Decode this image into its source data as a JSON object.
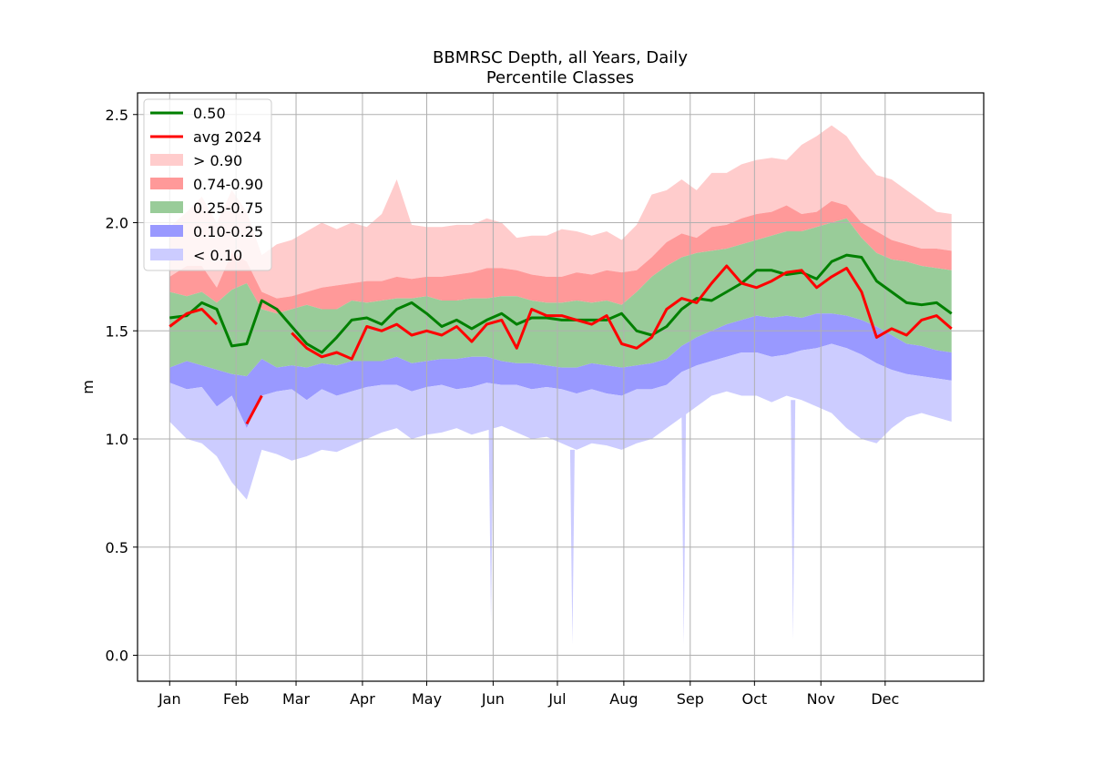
{
  "chart_data": {
    "type": "area",
    "title": "BBMRSC Depth, all Years, Daily",
    "subtitle": "Percentile Classes",
    "xlabel": "",
    "ylabel": "m",
    "ylim": [
      -0.12,
      2.6
    ],
    "yticks": [
      0.0,
      0.5,
      1.0,
      1.5,
      2.0,
      2.5
    ],
    "ytick_labels": [
      "0.0",
      "0.5",
      "1.0",
      "1.5",
      "2.0",
      "2.5"
    ],
    "xlim_day": [
      -15,
      380
    ],
    "xticks": [
      {
        "day": 0,
        "label": "Jan"
      },
      {
        "day": 31,
        "label": "Feb"
      },
      {
        "day": 59,
        "label": "Mar"
      },
      {
        "day": 90,
        "label": "Apr"
      },
      {
        "day": 120,
        "label": "May"
      },
      {
        "day": 151,
        "label": "Jun"
      },
      {
        "day": 181,
        "label": "Jul"
      },
      {
        "day": 212,
        "label": "Aug"
      },
      {
        "day": 243,
        "label": "Sep"
      },
      {
        "day": 273,
        "label": "Oct"
      },
      {
        "day": 304,
        "label": "Nov"
      },
      {
        "day": 334,
        "label": "Dec"
      }
    ],
    "grid": true,
    "legend_position": "upper-left",
    "legend": [
      {
        "label": "0.50",
        "kind": "line",
        "color": "#008000"
      },
      {
        "label": "avg 2024",
        "kind": "line",
        "color": "#ff0000"
      },
      {
        "label": "> 0.90",
        "kind": "patch",
        "color": "#ffcccc"
      },
      {
        "label": "0.74-0.90",
        "kind": "patch",
        "color": "#ff9999"
      },
      {
        "label": "0.25-0.75",
        "kind": "patch",
        "color": "#99cc99"
      },
      {
        "label": "0.10-0.25",
        "kind": "patch",
        "color": "#9999ff"
      },
      {
        "label": "< 0.10",
        "kind": "patch",
        "color": "#ccccff"
      }
    ],
    "band_colors": {
      "gt90": "#ffcccc",
      "p74_90": "#ff9999",
      "p25_75": "#99cc99",
      "p10_25": "#9999ff",
      "lt10": "#ccccff"
    },
    "line_colors": {
      "median": "#008000",
      "avg": "#ff0000"
    },
    "day": [
      0,
      8,
      15,
      22,
      29,
      36,
      43,
      50,
      57,
      64,
      71,
      78,
      85,
      92,
      99,
      106,
      113,
      120,
      127,
      134,
      141,
      148,
      155,
      162,
      169,
      176,
      183,
      190,
      197,
      204,
      211,
      218,
      225,
      232,
      239,
      246,
      253,
      260,
      267,
      274,
      281,
      288,
      295,
      302,
      309,
      316,
      323,
      330,
      337,
      344,
      351,
      358,
      365
    ],
    "series": [
      {
        "name": "max",
        "values": [
          1.98,
          2.05,
          2.12,
          2.0,
          2.15,
          2.05,
          1.85,
          1.9,
          1.92,
          1.96,
          2.0,
          1.97,
          2.0,
          1.98,
          2.04,
          2.2,
          1.99,
          1.98,
          1.98,
          1.99,
          1.99,
          2.02,
          2.0,
          1.93,
          1.94,
          1.94,
          1.97,
          1.96,
          1.94,
          1.96,
          1.92,
          1.99,
          2.13,
          2.15,
          2.2,
          2.15,
          2.23,
          2.23,
          2.27,
          2.29,
          2.3,
          2.29,
          2.36,
          2.4,
          2.45,
          2.4,
          2.3,
          2.22,
          2.2,
          2.15,
          2.1,
          2.05,
          2.04
        ]
      },
      {
        "name": "p90",
        "values": [
          1.75,
          1.8,
          1.8,
          1.7,
          1.86,
          1.82,
          1.68,
          1.65,
          1.66,
          1.68,
          1.7,
          1.71,
          1.72,
          1.73,
          1.73,
          1.75,
          1.74,
          1.75,
          1.75,
          1.76,
          1.77,
          1.79,
          1.79,
          1.78,
          1.76,
          1.75,
          1.75,
          1.77,
          1.76,
          1.78,
          1.77,
          1.78,
          1.84,
          1.91,
          1.95,
          1.93,
          1.98,
          1.99,
          2.02,
          2.04,
          2.05,
          2.08,
          2.04,
          2.05,
          2.1,
          2.08,
          2.0,
          1.96,
          1.92,
          1.9,
          1.88,
          1.88,
          1.87
        ]
      },
      {
        "name": "p75",
        "values": [
          1.68,
          1.66,
          1.68,
          1.63,
          1.69,
          1.72,
          1.6,
          1.58,
          1.6,
          1.62,
          1.6,
          1.6,
          1.64,
          1.63,
          1.64,
          1.65,
          1.65,
          1.66,
          1.64,
          1.64,
          1.65,
          1.65,
          1.66,
          1.66,
          1.64,
          1.63,
          1.63,
          1.64,
          1.63,
          1.64,
          1.62,
          1.68,
          1.75,
          1.8,
          1.84,
          1.86,
          1.87,
          1.88,
          1.9,
          1.92,
          1.94,
          1.96,
          1.96,
          1.98,
          2.0,
          2.02,
          1.93,
          1.86,
          1.83,
          1.82,
          1.8,
          1.79,
          1.78
        ]
      },
      {
        "name": "p25",
        "values": [
          1.33,
          1.36,
          1.34,
          1.32,
          1.3,
          1.29,
          1.37,
          1.33,
          1.34,
          1.33,
          1.35,
          1.34,
          1.36,
          1.36,
          1.36,
          1.38,
          1.35,
          1.36,
          1.37,
          1.37,
          1.38,
          1.38,
          1.36,
          1.35,
          1.35,
          1.34,
          1.33,
          1.33,
          1.35,
          1.34,
          1.33,
          1.34,
          1.35,
          1.37,
          1.43,
          1.47,
          1.5,
          1.53,
          1.55,
          1.57,
          1.56,
          1.57,
          1.56,
          1.58,
          1.58,
          1.57,
          1.55,
          1.52,
          1.48,
          1.44,
          1.43,
          1.41,
          1.4
        ]
      },
      {
        "name": "p10",
        "values": [
          1.26,
          1.23,
          1.24,
          1.15,
          1.2,
          1.05,
          1.2,
          1.22,
          1.23,
          1.18,
          1.23,
          1.2,
          1.22,
          1.24,
          1.25,
          1.25,
          1.22,
          1.24,
          1.25,
          1.23,
          1.24,
          1.26,
          1.25,
          1.25,
          1.23,
          1.24,
          1.23,
          1.21,
          1.23,
          1.21,
          1.2,
          1.23,
          1.23,
          1.25,
          1.31,
          1.34,
          1.36,
          1.38,
          1.4,
          1.4,
          1.38,
          1.39,
          1.41,
          1.42,
          1.44,
          1.42,
          1.39,
          1.35,
          1.32,
          1.3,
          1.29,
          1.28,
          1.27
        ]
      },
      {
        "name": "min",
        "values": [
          1.08,
          1.0,
          0.98,
          0.92,
          0.8,
          0.72,
          0.95,
          0.93,
          0.9,
          0.92,
          0.95,
          0.94,
          0.97,
          1.0,
          1.03,
          1.05,
          1.0,
          1.02,
          1.03,
          1.05,
          1.02,
          1.04,
          1.06,
          1.03,
          1.0,
          1.01,
          0.98,
          0.95,
          0.98,
          0.97,
          0.95,
          0.98,
          1.0,
          1.05,
          1.1,
          1.15,
          1.2,
          1.22,
          1.2,
          1.2,
          1.17,
          1.2,
          1.18,
          1.15,
          1.12,
          1.05,
          1.0,
          0.98,
          1.05,
          1.1,
          1.12,
          1.1,
          1.08
        ]
      },
      {
        "name": "0.50",
        "values": [
          1.56,
          1.57,
          1.63,
          1.6,
          1.43,
          1.44,
          1.64,
          1.6,
          1.52,
          1.44,
          1.4,
          1.47,
          1.55,
          1.56,
          1.53,
          1.6,
          1.63,
          1.58,
          1.52,
          1.55,
          1.51,
          1.55,
          1.58,
          1.53,
          1.56,
          1.56,
          1.55,
          1.55,
          1.55,
          1.55,
          1.58,
          1.5,
          1.48,
          1.52,
          1.6,
          1.65,
          1.64,
          1.68,
          1.72,
          1.78,
          1.78,
          1.76,
          1.77,
          1.74,
          1.82,
          1.85,
          1.84,
          1.73,
          1.68,
          1.63,
          1.62,
          1.63,
          1.58
        ]
      },
      {
        "name": "avg 2024",
        "values": [
          1.52,
          1.58,
          1.6,
          1.53,
          null,
          1.07,
          1.2,
          null,
          1.49,
          1.42,
          1.38,
          1.4,
          1.37,
          1.52,
          1.5,
          1.53,
          1.48,
          1.5,
          1.48,
          1.52,
          1.45,
          1.53,
          1.55,
          1.42,
          1.6,
          1.57,
          1.57,
          1.55,
          1.53,
          1.57,
          1.44,
          1.42,
          1.47,
          1.6,
          1.65,
          1.63,
          1.72,
          1.8,
          1.72,
          1.7,
          1.73,
          1.77,
          1.78,
          1.7,
          1.75,
          1.79,
          1.68,
          1.47,
          1.51,
          1.48,
          1.55,
          1.57,
          1.51
        ]
      }
    ],
    "dips": [
      {
        "day": 150,
        "min": 0.15
      },
      {
        "day": 188,
        "min": 0.05
      },
      {
        "day": 240,
        "min": 0.05
      },
      {
        "day": 291,
        "min": 0.07
      }
    ]
  }
}
